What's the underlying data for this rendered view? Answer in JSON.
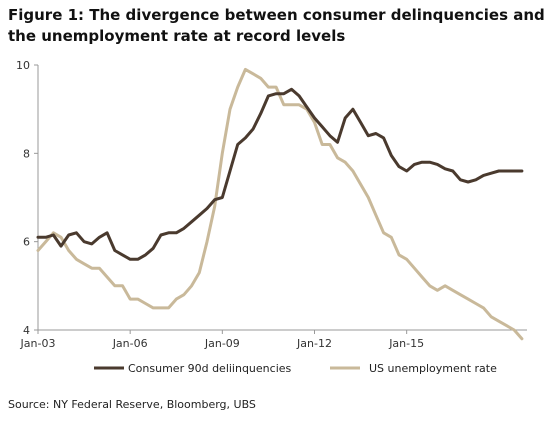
{
  "title": "Figure 1: The divergence between consumer delinquencies and the unemployment rate at record levels",
  "source": "Source:  NY Federal Reserve, Bloomberg, UBS",
  "colors": {
    "delinquency": "#4a3a2e",
    "unemployment": "#c9b99a",
    "axis": "#999999"
  },
  "chart_data": {
    "type": "line",
    "title": "Figure 1: The divergence between consumer delinquencies and the unemployment rate at record levels",
    "xlabel": "",
    "ylabel": "",
    "ylim": [
      4,
      10
    ],
    "yticks": [
      4,
      6,
      8,
      10
    ],
    "xlim": [
      "2003-01",
      "2018-12"
    ],
    "xtick_labels": [
      "Jan-03",
      "Jan-06",
      "Jan-09",
      "Jan-12",
      "Jan-15"
    ],
    "xtick_dates": [
      "2003-01",
      "2006-01",
      "2009-01",
      "2012-01",
      "2015-01"
    ],
    "legend_position": "bottom",
    "grid": false,
    "series": [
      {
        "name": "Consumer 90d deliinquencies",
        "x": [
          "2003-01",
          "2003-04",
          "2003-07",
          "2003-10",
          "2004-01",
          "2004-04",
          "2004-07",
          "2004-10",
          "2005-01",
          "2005-04",
          "2005-07",
          "2005-10",
          "2006-01",
          "2006-04",
          "2006-07",
          "2006-10",
          "2007-01",
          "2007-04",
          "2007-07",
          "2007-10",
          "2008-01",
          "2008-04",
          "2008-07",
          "2008-10",
          "2009-01",
          "2009-04",
          "2009-07",
          "2009-10",
          "2010-01",
          "2010-04",
          "2010-07",
          "2010-10",
          "2011-01",
          "2011-04",
          "2011-07",
          "2011-10",
          "2012-01",
          "2012-04",
          "2012-07",
          "2012-10",
          "2013-01",
          "2013-04",
          "2013-07",
          "2013-10",
          "2014-01",
          "2014-04",
          "2014-07",
          "2014-10",
          "2015-01",
          "2015-04",
          "2015-07",
          "2015-10",
          "2016-01",
          "2016-04",
          "2016-07",
          "2016-10",
          "2017-01",
          "2017-04",
          "2017-07",
          "2017-10",
          "2018-01",
          "2018-04",
          "2018-07",
          "2018-10"
        ],
        "values": [
          6.1,
          6.1,
          6.15,
          5.9,
          6.15,
          6.2,
          6.0,
          5.95,
          6.1,
          6.2,
          5.8,
          5.7,
          5.6,
          5.6,
          5.7,
          5.85,
          6.15,
          6.2,
          6.2,
          6.3,
          6.45,
          6.6,
          6.75,
          6.95,
          7.0,
          7.6,
          8.2,
          8.35,
          8.55,
          8.9,
          9.3,
          9.35,
          9.35,
          9.45,
          9.3,
          9.05,
          8.8,
          8.6,
          8.4,
          8.25,
          8.8,
          9.0,
          8.7,
          8.4,
          8.45,
          8.35,
          7.95,
          7.7,
          7.6,
          7.75,
          7.8,
          7.8,
          7.75,
          7.65,
          7.6,
          7.4,
          7.35,
          7.4,
          7.5,
          7.55,
          7.6,
          7.6,
          7.6,
          7.6
        ]
      },
      {
        "name": "US unemployment rate",
        "x": [
          "2003-01",
          "2003-04",
          "2003-07",
          "2003-10",
          "2004-01",
          "2004-04",
          "2004-07",
          "2004-10",
          "2005-01",
          "2005-04",
          "2005-07",
          "2005-10",
          "2006-01",
          "2006-04",
          "2006-07",
          "2006-10",
          "2007-01",
          "2007-04",
          "2007-07",
          "2007-10",
          "2008-01",
          "2008-04",
          "2008-07",
          "2008-10",
          "2009-01",
          "2009-04",
          "2009-07",
          "2009-10",
          "2010-01",
          "2010-04",
          "2010-07",
          "2010-10",
          "2011-01",
          "2011-04",
          "2011-07",
          "2011-10",
          "2012-01",
          "2012-04",
          "2012-07",
          "2012-10",
          "2013-01",
          "2013-04",
          "2013-07",
          "2013-10",
          "2014-01",
          "2014-04",
          "2014-07",
          "2014-10",
          "2015-01",
          "2015-04",
          "2015-07",
          "2015-10",
          "2016-01",
          "2016-04",
          "2016-07",
          "2016-10",
          "2017-01",
          "2017-04",
          "2017-07",
          "2017-10",
          "2018-01",
          "2018-04",
          "2018-07",
          "2018-10"
        ],
        "values": [
          5.8,
          6.0,
          6.2,
          6.1,
          5.8,
          5.6,
          5.5,
          5.4,
          5.4,
          5.2,
          5.0,
          5.0,
          4.7,
          4.7,
          4.6,
          4.5,
          4.5,
          4.5,
          4.7,
          4.8,
          5.0,
          5.3,
          6.0,
          6.8,
          8.0,
          9.0,
          9.5,
          9.9,
          9.8,
          9.7,
          9.5,
          9.5,
          9.1,
          9.1,
          9.1,
          9.0,
          8.7,
          8.2,
          8.2,
          7.9,
          7.8,
          7.6,
          7.3,
          7.0,
          6.6,
          6.2,
          6.1,
          5.7,
          5.6,
          5.4,
          5.2,
          5.0,
          4.9,
          5.0,
          4.9,
          4.8,
          4.7,
          4.6,
          4.5,
          4.3,
          4.2,
          4.1,
          4.0,
          3.8
        ]
      }
    ]
  }
}
